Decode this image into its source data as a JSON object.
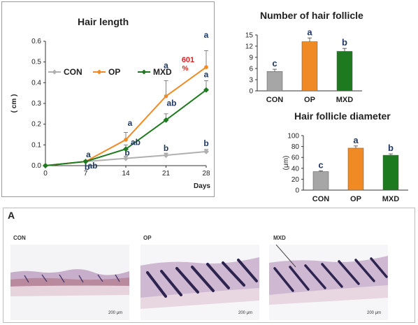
{
  "chart_data": [
    {
      "type": "line",
      "title": "Hair length",
      "ylabel": "( cm )",
      "xlabel": "Days",
      "x": [
        0,
        7,
        14,
        21,
        28
      ],
      "xlim": [
        0,
        28
      ],
      "ylim": [
        0,
        0.6
      ],
      "yticks": [
        "0.0",
        "0.1",
        "0.2",
        "0.3",
        "0.4",
        "0.5",
        "0.6"
      ],
      "grid": false,
      "legend": "top-left",
      "series": [
        {
          "name": "CON",
          "color": "#b0b0b0",
          "values": [
            0.0,
            0.02,
            0.035,
            0.05,
            0.068
          ],
          "error": [
            0,
            0.005,
            0.01,
            0.01,
            0.01
          ],
          "letters": [
            "",
            "b",
            "b",
            "b",
            "b"
          ]
        },
        {
          "name": "OP",
          "color": "#f08a24",
          "values": [
            0.0,
            0.02,
            0.125,
            0.335,
            0.475
          ],
          "error": [
            0,
            0.005,
            0.035,
            0.075,
            0.08
          ],
          "letters": [
            "",
            "a",
            "a",
            "a",
            "a"
          ]
        },
        {
          "name": "MXD",
          "color": "#1e7a1e",
          "values": [
            0.0,
            0.02,
            0.08,
            0.22,
            0.365
          ],
          "error": [
            0,
            0.005,
            0.02,
            0.03,
            0.045
          ],
          "letters": [
            "",
            "ab",
            "ab",
            "ab",
            "a"
          ]
        }
      ],
      "annotation": {
        "text": "601\n%",
        "color": "#e02020"
      }
    },
    {
      "type": "bar",
      "title": "Number of hair follicle",
      "ylabel": "",
      "categories": [
        "CON",
        "OP",
        "MXD"
      ],
      "values": [
        5.2,
        13.2,
        10.6
      ],
      "error": [
        0.6,
        1.0,
        0.8
      ],
      "letters": [
        "c",
        "a",
        "b"
      ],
      "colors": [
        "#a6a6a6",
        "#f08a24",
        "#1e7a1e"
      ],
      "ylim": [
        0,
        15
      ],
      "yticks": [
        "0",
        "3",
        "6",
        "9",
        "12",
        "15"
      ]
    },
    {
      "type": "bar",
      "title": "Hair follicle diameter",
      "ylabel": "(μm)",
      "categories": [
        "CON",
        "OP",
        "MXD"
      ],
      "values": [
        34,
        77,
        64
      ],
      "error": [
        1.5,
        4,
        2.5
      ],
      "letters": [
        "c",
        "a",
        "b"
      ],
      "colors": [
        "#a6a6a6",
        "#f08a24",
        "#1e7a1e"
      ],
      "ylim": [
        0,
        100
      ],
      "yticks": [
        "0",
        "20",
        "40",
        "60",
        "80",
        "100"
      ]
    }
  ],
  "histology": {
    "panel_label": "A",
    "images": [
      {
        "label": "CON",
        "scale": "200 μm"
      },
      {
        "label": "OP",
        "scale": "200 μm"
      },
      {
        "label": "MXD",
        "scale": "200 μm"
      }
    ]
  }
}
